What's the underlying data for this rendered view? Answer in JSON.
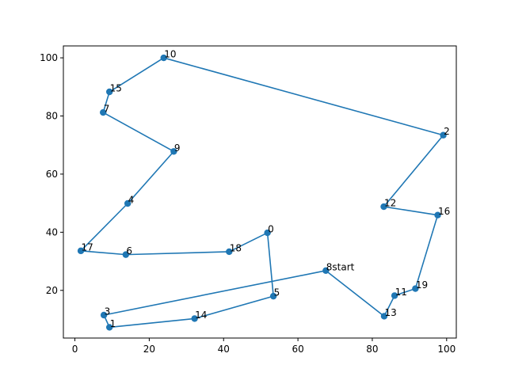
{
  "chart_data": {
    "type": "line",
    "title": "",
    "xlabel": "",
    "ylabel": "",
    "xlim": [
      -3.1,
      102.6
    ],
    "ylim": [
      3.6,
      104.1
    ],
    "xticks": [
      0,
      20,
      40,
      60,
      80,
      100
    ],
    "yticks": [
      20,
      40,
      60,
      80,
      100
    ],
    "grid": false,
    "line_color": "#1f77b4",
    "marker_color": "#1f77b4",
    "points": [
      {
        "label": "0",
        "x": 51.8,
        "y": 39.8
      },
      {
        "label": "1",
        "x": 9.3,
        "y": 7.3
      },
      {
        "label": "2",
        "x": 99.1,
        "y": 73.4
      },
      {
        "label": "3",
        "x": 7.8,
        "y": 11.5
      },
      {
        "label": "4",
        "x": 14.2,
        "y": 49.9
      },
      {
        "label": "5",
        "x": 53.4,
        "y": 18.0
      },
      {
        "label": "6",
        "x": 13.7,
        "y": 32.3
      },
      {
        "label": "7",
        "x": 7.6,
        "y": 81.2
      },
      {
        "label": "8",
        "x": 67.5,
        "y": 26.8
      },
      {
        "label": "9",
        "x": 26.6,
        "y": 67.8
      },
      {
        "label": "10",
        "x": 23.9,
        "y": 100.0
      },
      {
        "label": "11",
        "x": 86.0,
        "y": 18.2
      },
      {
        "label": "12",
        "x": 83.1,
        "y": 48.8
      },
      {
        "label": "13",
        "x": 83.2,
        "y": 11.1
      },
      {
        "label": "14",
        "x": 32.2,
        "y": 10.3
      },
      {
        "label": "15",
        "x": 9.3,
        "y": 88.3
      },
      {
        "label": "16",
        "x": 97.6,
        "y": 45.9
      },
      {
        "label": "17",
        "x": 1.6,
        "y": 33.6
      },
      {
        "label": "18",
        "x": 41.5,
        "y": 33.3
      },
      {
        "label": "19",
        "x": 91.6,
        "y": 20.6
      }
    ],
    "route": [
      8,
      3,
      1,
      14,
      5,
      0,
      18,
      6,
      17,
      4,
      9,
      7,
      15,
      10,
      2,
      12,
      16,
      19,
      11,
      13,
      8
    ],
    "start_index": 8,
    "start_text": "start"
  }
}
